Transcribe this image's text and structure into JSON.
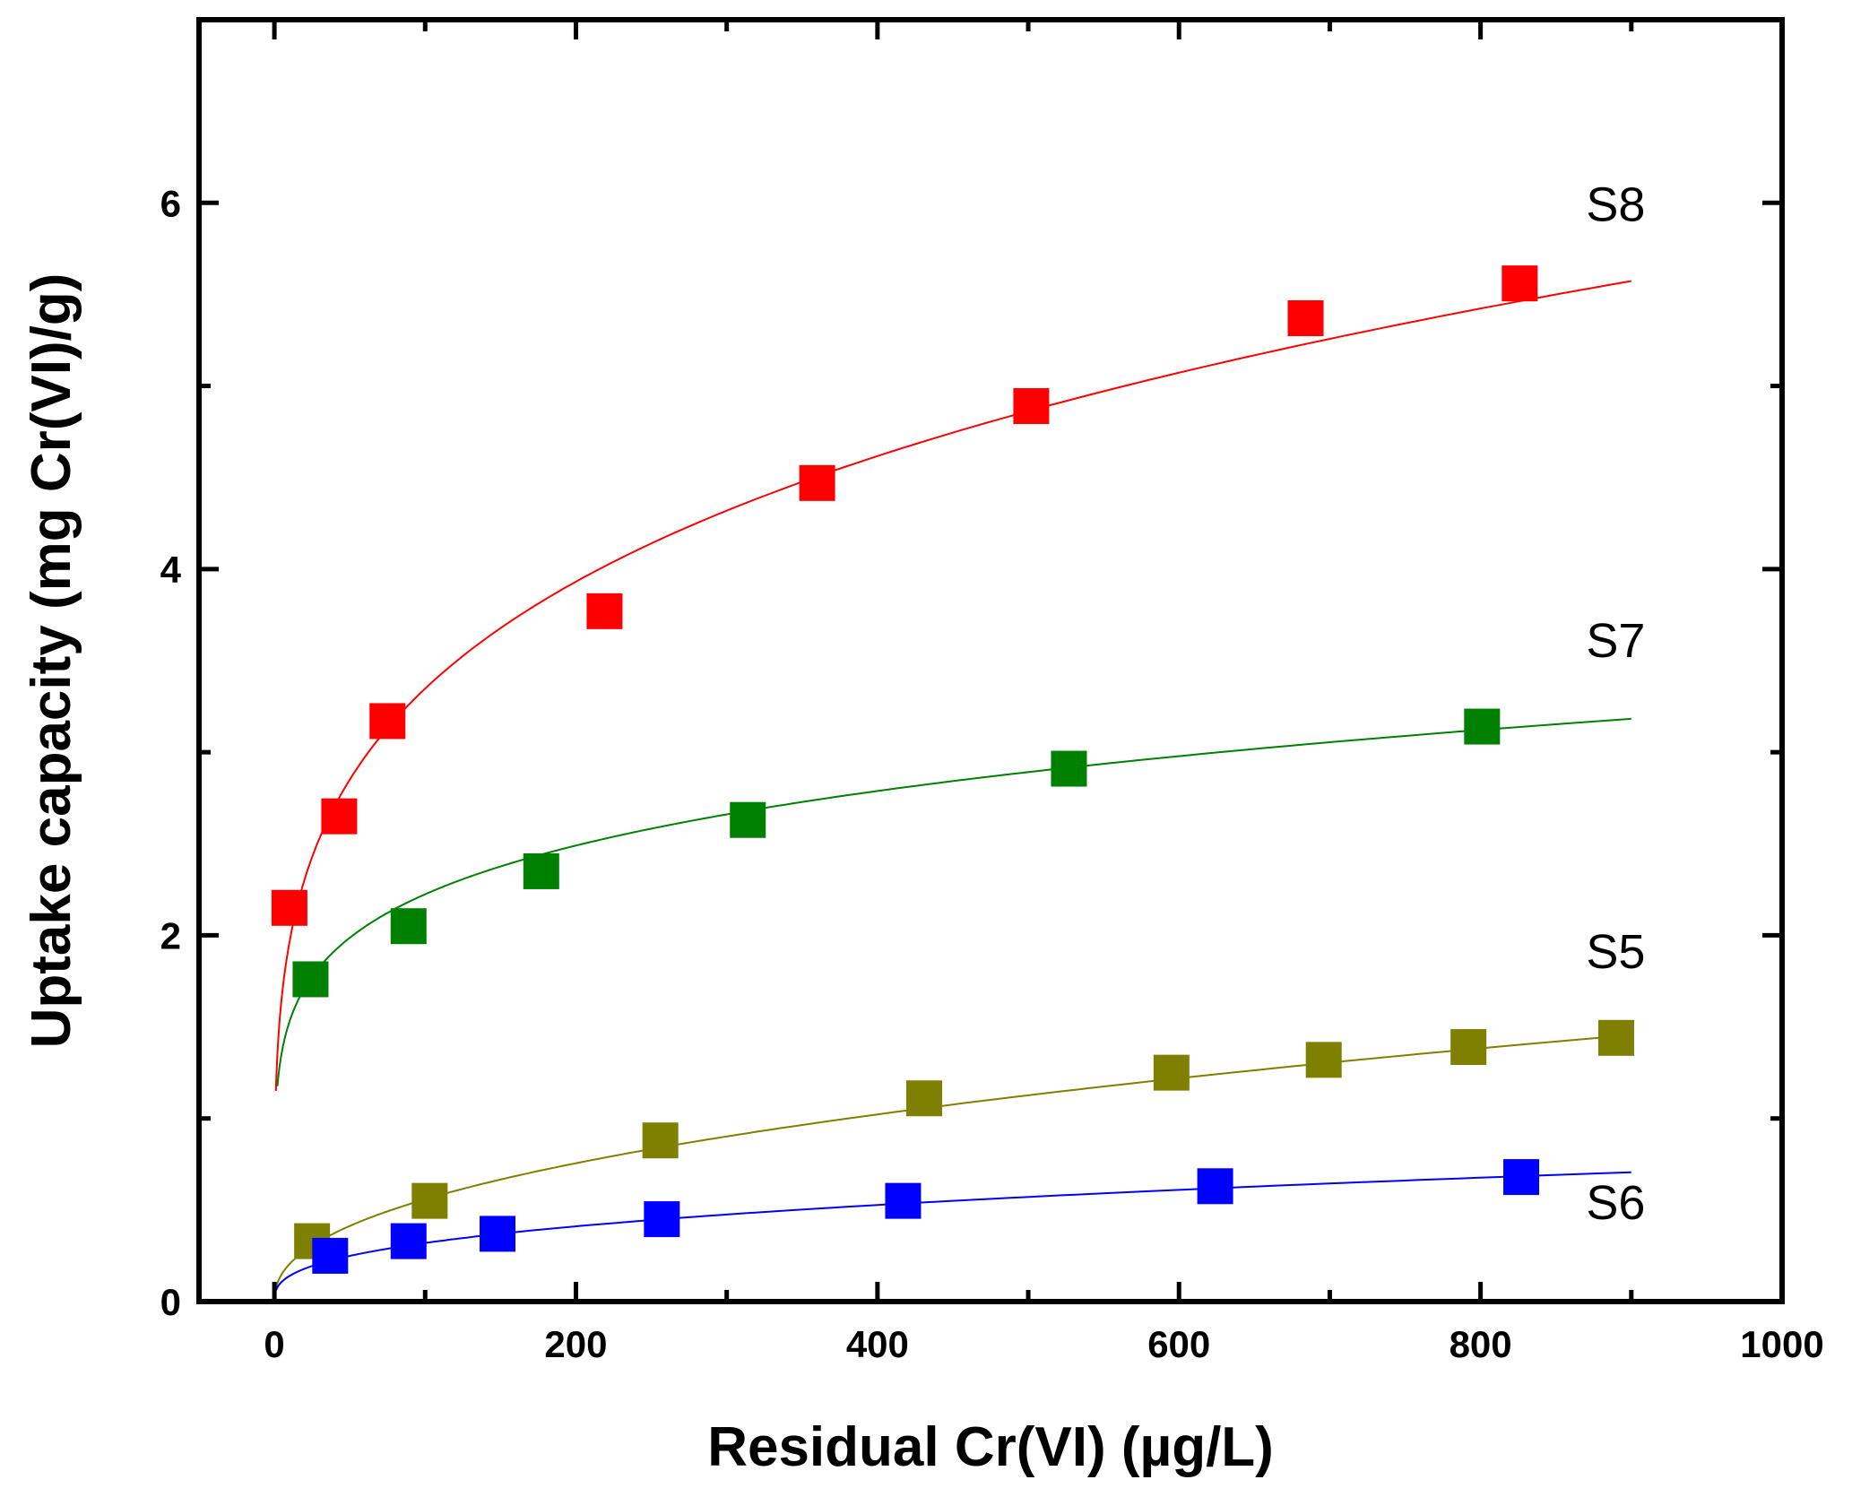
{
  "chart_data": {
    "type": "scatter",
    "title": "",
    "xlabel": "Residual Cr(VI) (µg/L)",
    "ylabel": "Uptake capacity (mg Cr(VI)/g)",
    "xlim": [
      -50,
      1000
    ],
    "ylim": [
      0,
      7
    ],
    "x_ticks": [
      "0",
      "200",
      "400",
      "600",
      "800",
      "1000"
    ],
    "y_ticks": [
      "0",
      "2",
      "4",
      "6"
    ],
    "grid": false,
    "series": [
      {
        "name": "S8",
        "color": "#ff0000",
        "points": [
          [
            10,
            2.15
          ],
          [
            43,
            2.65
          ],
          [
            75,
            3.17
          ],
          [
            219,
            3.77
          ],
          [
            360,
            4.47
          ],
          [
            502,
            4.89
          ],
          [
            684,
            5.37
          ],
          [
            826,
            5.56
          ]
        ],
        "fit": {
          "k": 1.15,
          "n": 0.232,
          "x_start": 1,
          "x_end": 900
        }
      },
      {
        "name": "S7",
        "color": "#008000",
        "points": [
          [
            24,
            1.76
          ],
          [
            89,
            2.05
          ],
          [
            177,
            2.35
          ],
          [
            314,
            2.63
          ],
          [
            527,
            2.91
          ],
          [
            801,
            3.14
          ]
        ],
        "fit": {
          "k": 1.05,
          "n": 0.163,
          "x_start": 2,
          "x_end": 900
        }
      },
      {
        "name": "S5",
        "color": "#808000",
        "points": [
          [
            25,
            0.33
          ],
          [
            103,
            0.55
          ],
          [
            256,
            0.88
          ],
          [
            431,
            1.11
          ],
          [
            595,
            1.25
          ],
          [
            696,
            1.32
          ],
          [
            792,
            1.39
          ],
          [
            890,
            1.44
          ]
        ],
        "fit": {
          "k": 0.075,
          "n": 0.436,
          "x_start": 1,
          "x_end": 900
        }
      },
      {
        "name": "S6",
        "color": "#0000ff",
        "points": [
          [
            37,
            0.25
          ],
          [
            89,
            0.33
          ],
          [
            148,
            0.37
          ],
          [
            257,
            0.45
          ],
          [
            417,
            0.55
          ],
          [
            624,
            0.63
          ],
          [
            827,
            0.68
          ]
        ],
        "fit": {
          "k": 0.061,
          "n": 0.36,
          "x_start": 1,
          "x_end": 900
        }
      }
    ],
    "series_label_positions": [
      {
        "name": "S8",
        "x": 870,
        "y": 5.9
      },
      {
        "name": "S7",
        "x": 870,
        "y": 3.52
      },
      {
        "name": "S5",
        "x": 870,
        "y": 1.82
      },
      {
        "name": "S6",
        "x": 870,
        "y": 0.45
      }
    ]
  }
}
